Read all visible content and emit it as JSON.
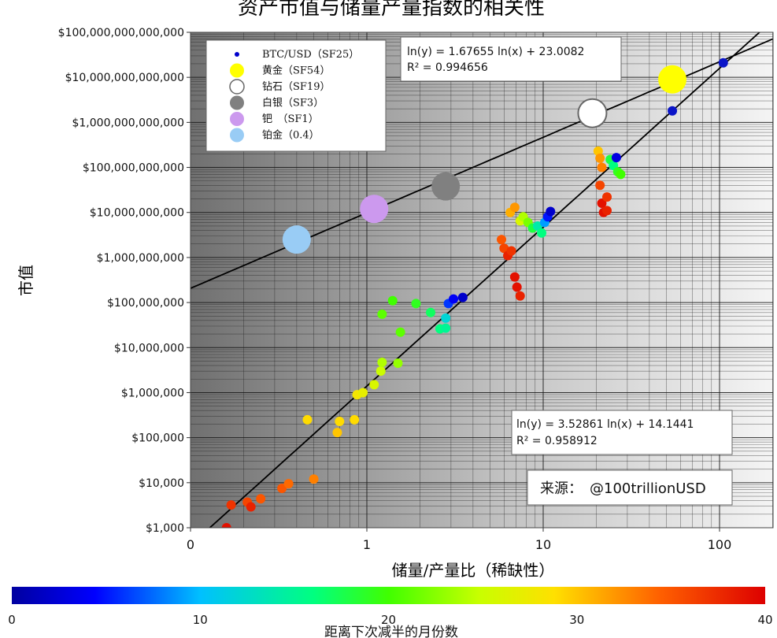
{
  "chart_data": {
    "type": "scatter",
    "title": "资产市值与储量产量指数的相关性",
    "xlabel": "储量/产量比（稀缺性）",
    "ylabel": "市值",
    "x_scale": "log",
    "y_scale": "log",
    "xlim": [
      0.1,
      200
    ],
    "ylim": [
      1000,
      100000000000000
    ],
    "x_ticks": [
      {
        "value": 0.1,
        "label": "0"
      },
      {
        "value": 1,
        "label": "1"
      },
      {
        "value": 10,
        "label": "10"
      },
      {
        "value": 100,
        "label": "100"
      }
    ],
    "y_ticks": [
      {
        "value": 100000000000000,
        "label": "$100,000,000,000,000"
      },
      {
        "value": 10000000000000,
        "label": "$10,000,000,000,000"
      },
      {
        "value": 1000000000000,
        "label": "$1,000,000,000,000"
      },
      {
        "value": 100000000000,
        "label": "$100,000,000,000"
      },
      {
        "value": 10000000000,
        "label": "$10,000,000,000"
      },
      {
        "value": 1000000000,
        "label": "$1,000,000,000"
      },
      {
        "value": 100000000,
        "label": "$100,000,000"
      },
      {
        "value": 10000000,
        "label": "$10,000,000"
      },
      {
        "value": 1000000,
        "label": "$1,000,000"
      },
      {
        "value": 100000,
        "label": "$100,000"
      },
      {
        "value": 10000,
        "label": "$10,000"
      },
      {
        "value": 1000,
        "label": "$1,000"
      }
    ],
    "grid": true,
    "legend_position": "top-left",
    "legend": [
      {
        "label": "BTC/USD（SF25）",
        "color": "#0000cc",
        "marker": "small"
      },
      {
        "label": "黄金（SF54）",
        "color": "#ffff00",
        "marker": "large"
      },
      {
        "label": "钻石（SF19）",
        "color": "#ffffff",
        "marker": "large"
      },
      {
        "label": "白银（SF3）",
        "color": "#808080",
        "marker": "large"
      },
      {
        "label": "钯　（SF1）",
        "color": "#cc99ee",
        "marker": "large"
      },
      {
        "label": "铂金（0.4）",
        "color": "#99ccf5",
        "marker": "large"
      }
    ],
    "assets": [
      {
        "name": "黄金",
        "x": 54,
        "y": 9000000000000,
        "color": "#ffff00"
      },
      {
        "name": "钻石",
        "x": 19,
        "y": 1600000000000,
        "color": "#ffffff"
      },
      {
        "name": "白银",
        "x": 2.8,
        "y": 38000000000,
        "color": "#808080"
      },
      {
        "name": "钯",
        "x": 1.1,
        "y": 12000000000,
        "color": "#cc99ee"
      },
      {
        "name": "铂金",
        "x": 0.4,
        "y": 2500000000,
        "color": "#99ccf5"
      }
    ],
    "btc_models": [
      {
        "x": 54,
        "y": 1800000000000
      },
      {
        "x": 105,
        "y": 21000000000000
      }
    ],
    "btc_points": [
      {
        "x": 0.16,
        "y": 1000,
        "c": 39
      },
      {
        "x": 0.17,
        "y": 3200,
        "c": 37
      },
      {
        "x": 0.21,
        "y": 3700,
        "c": 36
      },
      {
        "x": 0.22,
        "y": 2900,
        "c": 38
      },
      {
        "x": 0.25,
        "y": 4400,
        "c": 35
      },
      {
        "x": 0.33,
        "y": 7500,
        "c": 35
      },
      {
        "x": 0.36,
        "y": 9500,
        "c": 34
      },
      {
        "x": 0.5,
        "y": 12000,
        "c": 33
      },
      {
        "x": 0.46,
        "y": 250000,
        "c": 29
      },
      {
        "x": 0.7,
        "y": 230000,
        "c": 29
      },
      {
        "x": 0.68,
        "y": 130000,
        "c": 30
      },
      {
        "x": 0.85,
        "y": 250000,
        "c": 29
      },
      {
        "x": 0.88,
        "y": 900000,
        "c": 28
      },
      {
        "x": 0.95,
        "y": 1000000,
        "c": 27
      },
      {
        "x": 1.1,
        "y": 1500000,
        "c": 26
      },
      {
        "x": 1.2,
        "y": 3000000,
        "c": 25
      },
      {
        "x": 1.22,
        "y": 4700000,
        "c": 24
      },
      {
        "x": 1.5,
        "y": 4500000,
        "c": 23
      },
      {
        "x": 1.22,
        "y": 55000000,
        "c": 21
      },
      {
        "x": 1.4,
        "y": 110000000,
        "c": 20
      },
      {
        "x": 1.55,
        "y": 22000000,
        "c": 21
      },
      {
        "x": 1.9,
        "y": 95000000,
        "c": 19
      },
      {
        "x": 2.3,
        "y": 60000000,
        "c": 17
      },
      {
        "x": 2.6,
        "y": 26000000,
        "c": 16
      },
      {
        "x": 2.8,
        "y": 27000000,
        "c": 15
      },
      {
        "x": 2.8,
        "y": 45000000,
        "c": 12
      },
      {
        "x": 2.9,
        "y": 95000000,
        "c": 6
      },
      {
        "x": 3.1,
        "y": 120000000,
        "c": 4
      },
      {
        "x": 3.5,
        "y": 130000000,
        "c": 2
      },
      {
        "x": 5.8,
        "y": 2500000000,
        "c": 35
      },
      {
        "x": 6.0,
        "y": 1600000000,
        "c": 36
      },
      {
        "x": 6.3,
        "y": 1100000000,
        "c": 38
      },
      {
        "x": 6.6,
        "y": 1400000000,
        "c": 37
      },
      {
        "x": 6.5,
        "y": 10000000000,
        "c": 31
      },
      {
        "x": 6.9,
        "y": 13000000000,
        "c": 32
      },
      {
        "x": 7.4,
        "y": 6500000000,
        "c": 26
      },
      {
        "x": 7.7,
        "y": 8000000000,
        "c": 24
      },
      {
        "x": 8.2,
        "y": 6000000000,
        "c": 22
      },
      {
        "x": 8.7,
        "y": 4500000000,
        "c": 18
      },
      {
        "x": 9.3,
        "y": 5000000000,
        "c": 14
      },
      {
        "x": 9.8,
        "y": 3500000000,
        "c": 16
      },
      {
        "x": 10.2,
        "y": 6000000000,
        "c": 9
      },
      {
        "x": 10.6,
        "y": 8000000000,
        "c": 5
      },
      {
        "x": 11.0,
        "y": 10500000000,
        "c": 2
      },
      {
        "x": 6.9,
        "y": 370000000,
        "c": 39
      },
      {
        "x": 7.1,
        "y": 220000000,
        "c": 39
      },
      {
        "x": 7.4,
        "y": 140000000,
        "c": 38
      },
      {
        "x": 20.5,
        "y": 230000000000,
        "c": 30
      },
      {
        "x": 21,
        "y": 160000000000,
        "c": 32
      },
      {
        "x": 21.5,
        "y": 100000000000,
        "c": 33
      },
      {
        "x": 21,
        "y": 40000000000,
        "c": 36
      },
      {
        "x": 21.5,
        "y": 16000000000,
        "c": 39
      },
      {
        "x": 22,
        "y": 10000000000,
        "c": 39
      },
      {
        "x": 23,
        "y": 11000000000,
        "c": 38
      },
      {
        "x": 23,
        "y": 22000000000,
        "c": 37
      },
      {
        "x": 24,
        "y": 150000000000,
        "c": 18
      },
      {
        "x": 25,
        "y": 110000000000,
        "c": 16
      },
      {
        "x": 26.5,
        "y": 80000000000,
        "c": 19
      },
      {
        "x": 27.5,
        "y": 70000000000,
        "c": 20
      },
      {
        "x": 26,
        "y": 165000000000,
        "c": 3
      }
    ],
    "fit_lines": [
      {
        "slope": 1.67655,
        "intercept": 23.0082,
        "label_line1": "ln(y) = 1.67655 ln(x) + 23.0082",
        "label_line2": "R² = 0.994656"
      },
      {
        "slope": 3.52861,
        "intercept": 14.1441,
        "label_line1": "ln(y) = 3.52861 ln(x) + 14.1441",
        "label_line2": "R² = 0.958912"
      }
    ],
    "source": "来源：　@100trillionUSD",
    "colorbar": {
      "label": "距离下次减半的月份数",
      "min": 0,
      "max": 40,
      "ticks": [
        "0",
        "10",
        "20",
        "30",
        "40"
      ]
    }
  }
}
